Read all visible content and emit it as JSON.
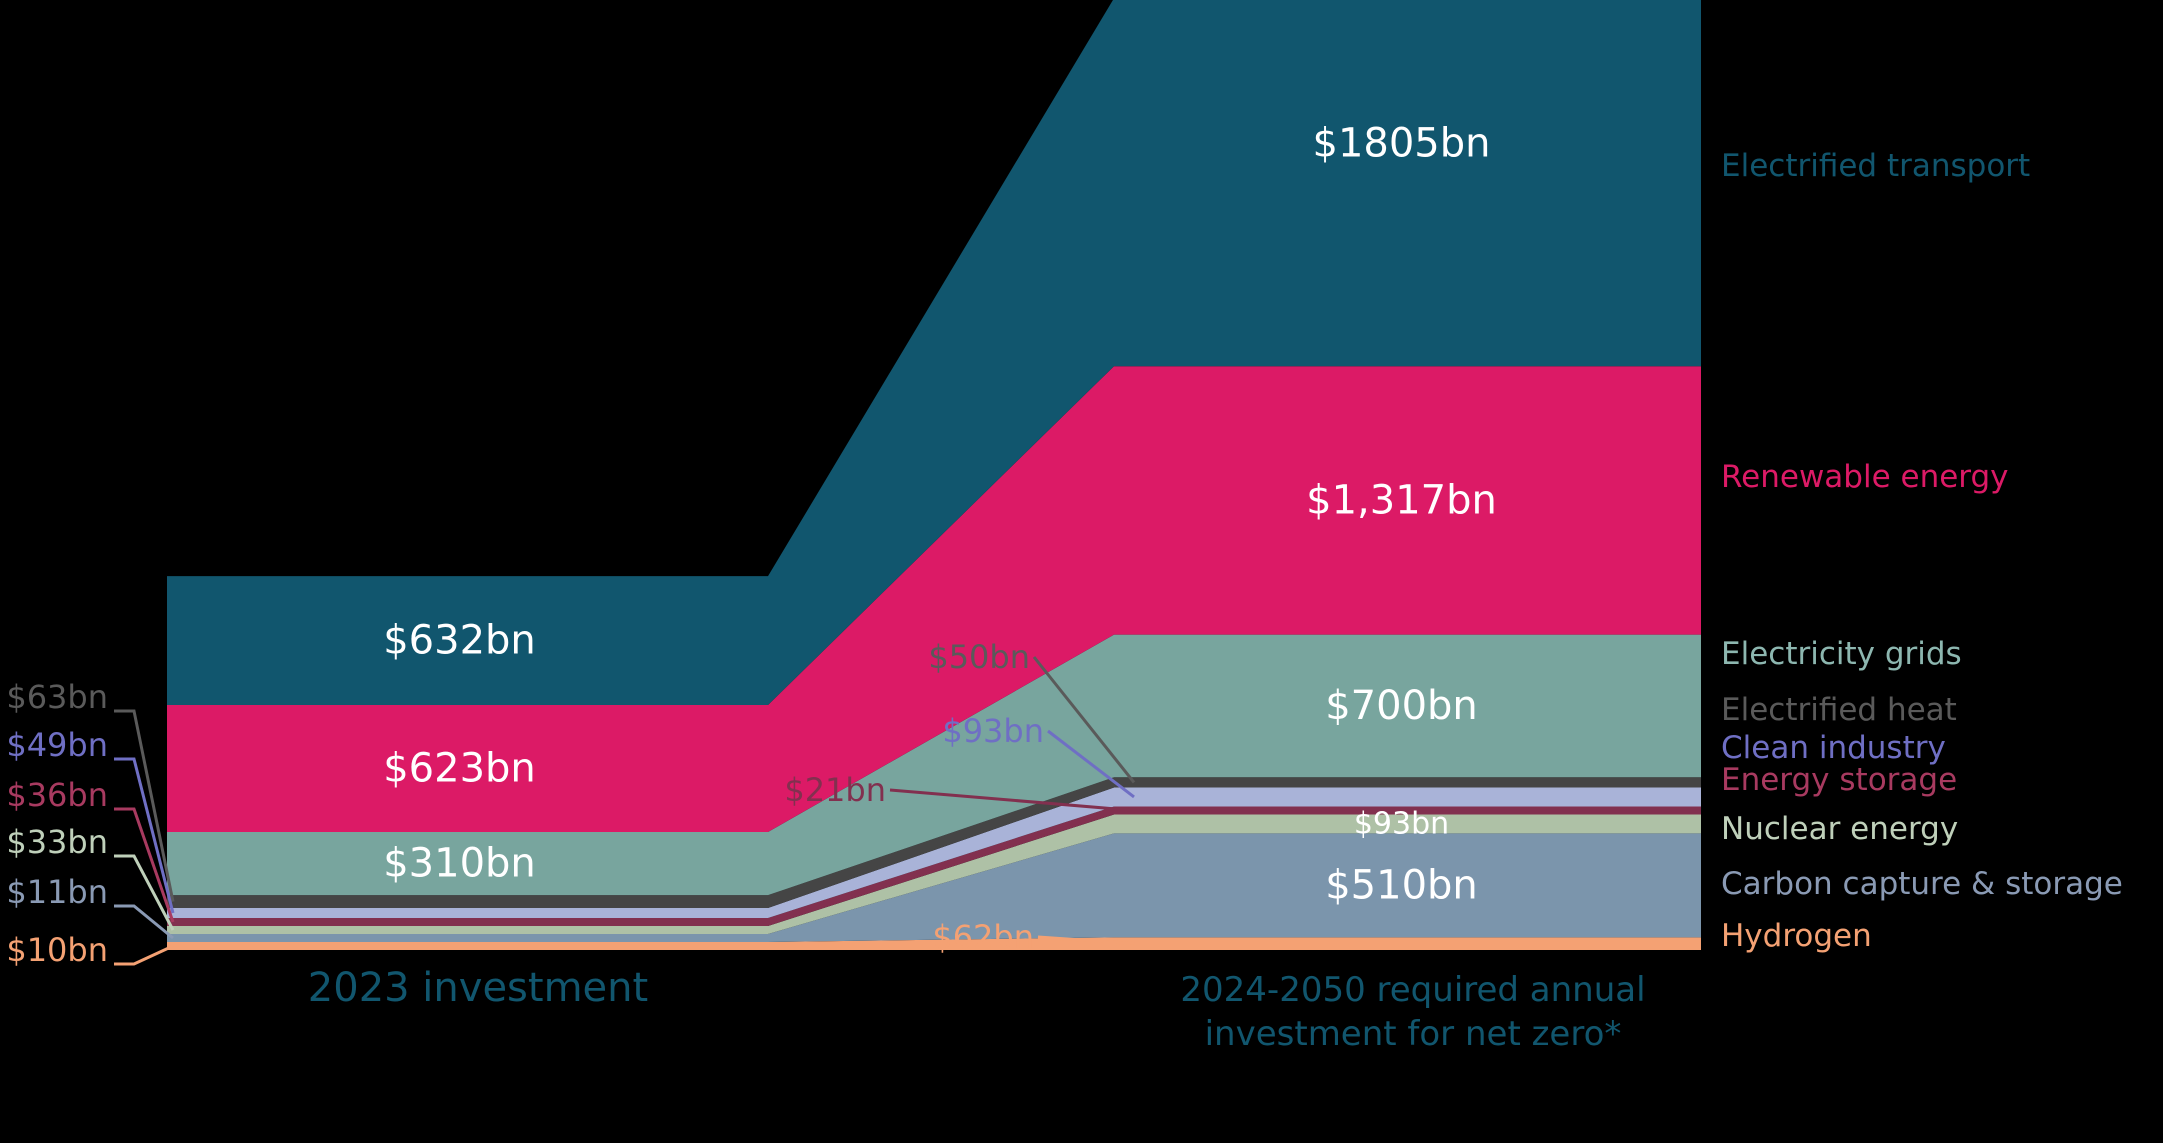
{
  "chart_data": {
    "type": "area",
    "title": "",
    "xlabel": "",
    "ylabel": "",
    "categories": [
      "2023 investment",
      "2024-2050 required annual investment for net zero*"
    ],
    "category_lines": [
      [
        "2023 investment"
      ],
      [
        "2024-2050  required annual",
        "investment for net zero*"
      ]
    ],
    "unit": "$bn",
    "series": [
      {
        "name": "Hydrogen",
        "values": [
          10,
          62
        ],
        "labels": [
          "$10bn",
          "$62bn"
        ],
        "color": "#F4A173"
      },
      {
        "name": "Carbon capture & storage",
        "values": [
          11,
          510
        ],
        "labels": [
          "$11bn",
          "$510bn"
        ],
        "color": "#7B95AC"
      },
      {
        "name": "Nuclear energy",
        "values": [
          33,
          93
        ],
        "labels": [
          "$33bn",
          "$93bn"
        ],
        "color": "#AEC1A6"
      },
      {
        "name": "Energy storage",
        "values": [
          36,
          21
        ],
        "labels": [
          "$36bn",
          "$21bn"
        ],
        "color": "#82304F"
      },
      {
        "name": "Clean industry",
        "values": [
          49,
          93
        ],
        "labels": [
          "$49bn",
          "$93bn"
        ],
        "color": "#A9B3D8"
      },
      {
        "name": "Electrified heat",
        "values": [
          63,
          50
        ],
        "labels": [
          "$63bn",
          "$50bn"
        ],
        "color": "#454545"
      },
      {
        "name": "Electricity grids",
        "values": [
          310,
          700
        ],
        "labels": [
          "$310bn",
          "$700bn"
        ],
        "color": "#78A59E"
      },
      {
        "name": "Renewable energy",
        "values": [
          623,
          1317
        ],
        "labels": [
          "$623bn",
          "$1,317bn"
        ],
        "color": "#DC1A66"
      },
      {
        "name": "Electrified transport",
        "values": [
          632,
          1805
        ],
        "labels": [
          "$632bn",
          "$1805bn"
        ],
        "color": "#11566E"
      }
    ],
    "legend_colors": {
      "Hydrogen": "#F4A173",
      "Carbon capture & storage": "#8A9AB4",
      "Nuclear energy": "#BFD0BA",
      "Energy storage": "#A83A60",
      "Clean industry": "#6F6FC4",
      "Electrified heat": "#5A5A5A",
      "Electricity grids": "#8DB7B0",
      "Renewable energy": "#DC1A66",
      "Electrified transport": "#11566E"
    },
    "category_label_color": "#11566E",
    "legend_position": "right",
    "grid": false
  }
}
